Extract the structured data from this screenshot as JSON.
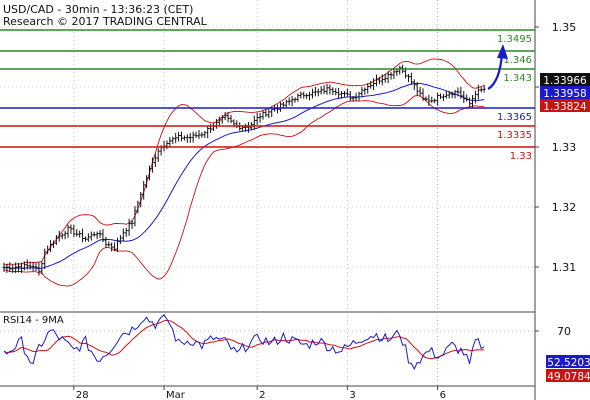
{
  "header": {
    "line1": "USD/CAD - 30min - 13:36:23 (CET)",
    "line2": "Research © 2017 TRADING CENTRAL"
  },
  "rsi_header": "RSI14 - 9MA",
  "colors": {
    "resistance": "#2a8a2a",
    "pivot": "#1a1acc",
    "support": "#cc1111",
    "bollinger": "#cc1111",
    "moving_average": "#1a1acc",
    "price_bars": "#111111",
    "rsi_line": "#1a1acc",
    "rsi_ma": "#cc1111",
    "current_price_box": "#111111",
    "arrow": "#1a1acc"
  },
  "chart_data": [
    {
      "type": "line",
      "title": "",
      "subtitle": "",
      "price_axis_ticks": [
        {
          "value": 1.35,
          "label": "1.35"
        },
        {
          "value": 1.34,
          "label": "1.34"
        },
        {
          "value": 1.33,
          "label": "1.33"
        },
        {
          "value": 1.32,
          "label": "1.32"
        },
        {
          "value": 1.31,
          "label": "1.31"
        }
      ],
      "ylim": [
        1.3025,
        1.3545
      ],
      "date_ticks": [
        "28",
        "Mar",
        "2",
        "3",
        "6"
      ],
      "level_lines": [
        {
          "name": "resistance",
          "value": 1.3495,
          "label": "1.3495",
          "color": "#2a8a2a"
        },
        {
          "name": "resistance",
          "value": 1.346,
          "label": "1.346",
          "color": "#2a8a2a"
        },
        {
          "name": "resistance",
          "value": 1.343,
          "label": "1.343",
          "color": "#2a8a2a"
        },
        {
          "name": "pivot",
          "value": 1.3365,
          "label": "1.3365",
          "color": "#1a1acc"
        },
        {
          "name": "support",
          "value": 1.3335,
          "label": "1.3335",
          "color": "#cc1111"
        },
        {
          "name": "support",
          "value": 1.33,
          "label": "1.33",
          "color": "#cc1111"
        }
      ],
      "price_tags": [
        {
          "label": "1.33966",
          "value": 1.33966,
          "style": "current"
        },
        {
          "label": "1.33958",
          "value": 1.33958,
          "style": "blue"
        },
        {
          "label": "1.33824",
          "value": 1.33824,
          "style": "red"
        }
      ],
      "bar_count": 166,
      "price_path": [
        [
          0,
          1.3099
        ],
        [
          10,
          1.3102
        ],
        [
          12,
          1.3092
        ],
        [
          14,
          1.3125
        ],
        [
          18,
          1.3148
        ],
        [
          22,
          1.3163
        ],
        [
          28,
          1.3147
        ],
        [
          32,
          1.3158
        ],
        [
          35,
          1.3139
        ],
        [
          38,
          1.3132
        ],
        [
          41,
          1.3158
        ],
        [
          44,
          1.3175
        ],
        [
          47,
          1.3223
        ],
        [
          50,
          1.3262
        ],
        [
          53,
          1.3295
        ],
        [
          56,
          1.3309
        ],
        [
          60,
          1.3316
        ],
        [
          64,
          1.3316
        ],
        [
          68,
          1.3322
        ],
        [
          72,
          1.3336
        ],
        [
          76,
          1.3349
        ],
        [
          80,
          1.3334
        ],
        [
          84,
          1.3334
        ],
        [
          88,
          1.3352
        ],
        [
          92,
          1.3362
        ],
        [
          96,
          1.337
        ],
        [
          100,
          1.3382
        ],
        [
          104,
          1.3389
        ],
        [
          108,
          1.3391
        ],
        [
          112,
          1.3398
        ],
        [
          116,
          1.3389
        ],
        [
          120,
          1.3382
        ],
        [
          124,
          1.3399
        ],
        [
          128,
          1.341
        ],
        [
          132,
          1.342
        ],
        [
          136,
          1.3432
        ],
        [
          138,
          1.3422
        ],
        [
          141,
          1.3402
        ],
        [
          144,
          1.3379
        ],
        [
          147,
          1.3378
        ],
        [
          150,
          1.3386
        ],
        [
          153,
          1.339
        ],
        [
          156,
          1.3392
        ],
        [
          158,
          1.338
        ],
        [
          160,
          1.3372
        ],
        [
          162,
          1.339
        ],
        [
          165,
          1.33966
        ]
      ],
      "projection": {
        "from_bar": 165,
        "from_value": 1.33966,
        "to_value": 1.346
      }
    },
    {
      "type": "line",
      "name": "RSI14 - 9MA",
      "ylim": [
        9,
        91
      ],
      "axis_ticks": [
        {
          "value": 70,
          "label": "70"
        }
      ],
      "tags": [
        {
          "label": "52.5203",
          "value": 52.52,
          "style": "blue"
        },
        {
          "label": "49.0784",
          "value": 49.08,
          "style": "red"
        }
      ],
      "rsi_path": [
        [
          0,
          44
        ],
        [
          6,
          58
        ],
        [
          10,
          30
        ],
        [
          12,
          52
        ],
        [
          16,
          70
        ],
        [
          20,
          60
        ],
        [
          24,
          48
        ],
        [
          28,
          58
        ],
        [
          32,
          38
        ],
        [
          36,
          48
        ],
        [
          40,
          66
        ],
        [
          44,
          72
        ],
        [
          48,
          86
        ],
        [
          52,
          78
        ],
        [
          56,
          84
        ],
        [
          60,
          56
        ],
        [
          64,
          60
        ],
        [
          68,
          54
        ],
        [
          72,
          62
        ],
        [
          76,
          58
        ],
        [
          80,
          44
        ],
        [
          84,
          56
        ],
        [
          88,
          62
        ],
        [
          92,
          56
        ],
        [
          96,
          64
        ],
        [
          100,
          58
        ],
        [
          104,
          54
        ],
        [
          108,
          60
        ],
        [
          112,
          52
        ],
        [
          116,
          48
        ],
        [
          120,
          56
        ],
        [
          124,
          64
        ],
        [
          128,
          66
        ],
        [
          132,
          60
        ],
        [
          136,
          68
        ],
        [
          140,
          30
        ],
        [
          142,
          36
        ],
        [
          146,
          48
        ],
        [
          150,
          42
        ],
        [
          154,
          54
        ],
        [
          158,
          46
        ],
        [
          160,
          32
        ],
        [
          162,
          58
        ],
        [
          165,
          52.52
        ]
      ]
    }
  ]
}
